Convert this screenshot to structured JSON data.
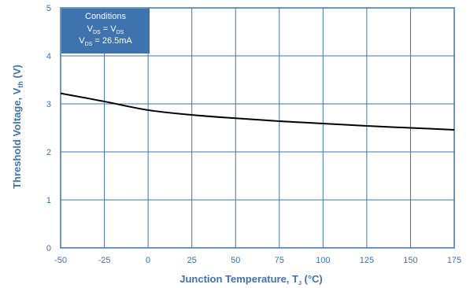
{
  "chart_data": {
    "type": "line",
    "xlabel": "Junction Temperature, T",
    "xlabel_sub": "J",
    "xlabel_unit": " (°C)",
    "ylabel": "Threshold Voltage, V",
    "ylabel_sub": "th",
    "ylabel_unit": " (V)",
    "xlim": [
      -50,
      175
    ],
    "ylim": [
      0,
      5
    ],
    "xticks": [
      -50,
      -25,
      0,
      25,
      50,
      75,
      100,
      125,
      150,
      175
    ],
    "yticks": [
      0,
      1,
      2,
      3,
      4,
      5
    ],
    "grid": true,
    "series": [
      {
        "x": [
          -50,
          -25,
          0,
          25,
          50,
          75,
          100,
          125,
          150,
          175
        ],
        "y": [
          3.22,
          3.05,
          2.87,
          2.77,
          2.7,
          2.64,
          2.59,
          2.54,
          2.5,
          2.46
        ]
      }
    ],
    "annotation": {
      "title": "Conditions",
      "lines": [
        {
          "a": "V",
          "a_sub": "DS",
          "op": " = ",
          "b": "V",
          "b_sub": "DS",
          "rest": ""
        },
        {
          "a": "V",
          "a_sub": "DS",
          "op": " = ",
          "b": "26.5mA",
          "b_sub": "",
          "rest": ""
        }
      ]
    },
    "colors": {
      "axis": "#3f73ad",
      "grid": "#3f73ad",
      "line": "#000000",
      "annotation_bg": "#3f73ad"
    }
  }
}
